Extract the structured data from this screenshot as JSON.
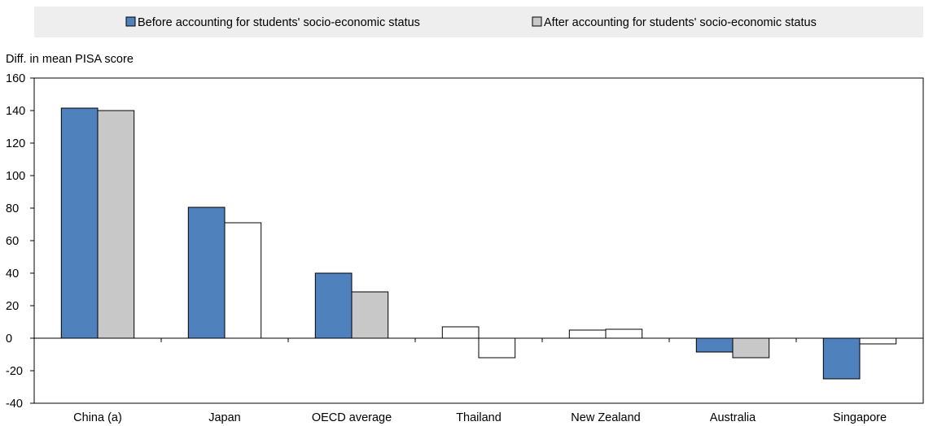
{
  "chart_data": {
    "type": "bar",
    "title": "",
    "xlabel": "",
    "ylabel": "Diff. in mean PISA score",
    "ylim": [
      -40,
      160
    ],
    "yticks": [
      -40,
      -20,
      0,
      20,
      40,
      60,
      80,
      100,
      120,
      140,
      160
    ],
    "ytick_labels": [
      "-40",
      "-20",
      "0",
      "20",
      "40",
      "60",
      "80",
      "100",
      "120",
      "140",
      "160"
    ],
    "grid": false,
    "legend_position": "top",
    "categories": [
      "China (a)",
      "Japan",
      "OECD average",
      "Thailand",
      "New Zealand",
      "Australia",
      "Singapore"
    ],
    "series": [
      {
        "name": "Before accounting for students' socio-economic status",
        "values": [
          141.5,
          80.5,
          40,
          7,
          5,
          -8.5,
          -25
        ],
        "fills": [
          "#4f81bd",
          "#4f81bd",
          "#4f81bd",
          "#ffffff",
          "#ffffff",
          "#4f81bd",
          "#4f81bd"
        ]
      },
      {
        "name": "After accounting for students' socio-economic status",
        "values": [
          140,
          71,
          28.5,
          -12,
          5.5,
          -12,
          -3.5
        ],
        "fills": [
          "#c8c8c8",
          "#ffffff",
          "#c8c8c8",
          "#ffffff",
          "#ffffff",
          "#c8c8c8",
          "#ffffff"
        ]
      }
    ],
    "legend_swatch_colors": [
      "#4f81bd",
      "#c8c8c8"
    ]
  }
}
